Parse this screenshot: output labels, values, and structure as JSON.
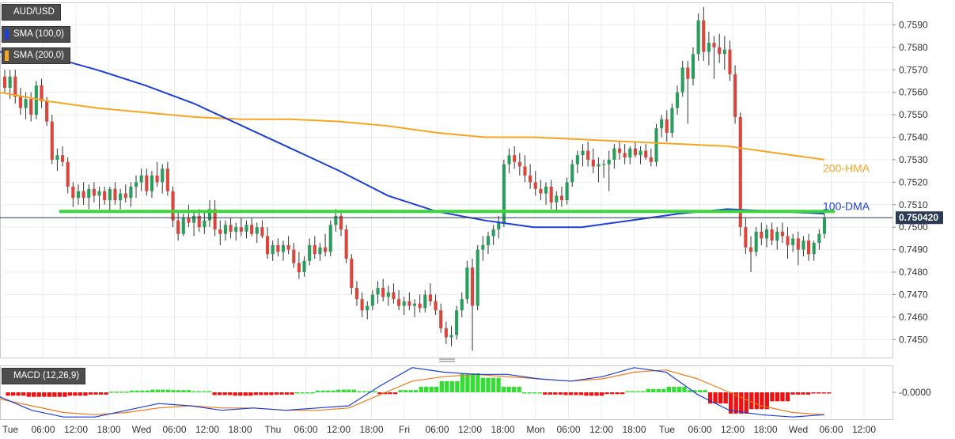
{
  "badges": {
    "symbol": "AUD/USD",
    "sma100": "SMA (100,0)",
    "sma200": "SMA (200,0)",
    "macd": "MACD (12,26,9)"
  },
  "colors": {
    "up": "#2a9d5c",
    "down": "#d9463b",
    "sma100": "#1c3fd6",
    "sma200": "#f5a623",
    "support": "#3ad63a",
    "macd_line": "#1c3fd6",
    "signal_line": "#f07a1a",
    "hist_pos": "#33dd33",
    "hist_neg": "#ee1111"
  },
  "chart_data": [
    {
      "type": "candlestick",
      "name": "price",
      "ylim": [
        0.7442,
        0.76
      ],
      "y_ticks": [
        "0.7450",
        "0.7460",
        "0.7470",
        "0.7480",
        "0.7490",
        "0.7500",
        "0.7510",
        "0.7520",
        "0.7530",
        "0.7540",
        "0.7550",
        "0.7560",
        "0.7570",
        "0.7580",
        "0.7590"
      ],
      "last_price": "0.750420",
      "support_level": 0.7507,
      "annotations": [
        {
          "text": "200-HMA",
          "series": "sma200"
        },
        {
          "text": "100-DMA",
          "series": "sma100"
        }
      ],
      "x_ticks": [
        "Tue",
        "06:00",
        "12:00",
        "18:00",
        "Wed",
        "06:00",
        "12:00",
        "18:00",
        "Thu",
        "06:00",
        "12:00",
        "18:00",
        "Fri",
        "06:00",
        "12:00",
        "18:00",
        "Mon",
        "06:00",
        "12:00",
        "18:00",
        "Tue",
        "06:00",
        "12:00",
        "18:00",
        "Wed",
        "06:00",
        "12:00"
      ],
      "candles": [
        [
          0.7567,
          0.757,
          0.756,
          0.7562
        ],
        [
          0.7562,
          0.757,
          0.7557,
          0.7567
        ],
        [
          0.7567,
          0.757,
          0.7555,
          0.7558
        ],
        [
          0.7558,
          0.7562,
          0.755,
          0.7553
        ],
        [
          0.7553,
          0.756,
          0.7548,
          0.7557
        ],
        [
          0.7557,
          0.756,
          0.7547,
          0.755
        ],
        [
          0.755,
          0.7565,
          0.7548,
          0.7563
        ],
        [
          0.7563,
          0.7566,
          0.7553,
          0.7556
        ],
        [
          0.7556,
          0.7558,
          0.7545,
          0.7547
        ],
        [
          0.7547,
          0.755,
          0.7528,
          0.753
        ],
        [
          0.753,
          0.7535,
          0.7525,
          0.7532
        ],
        [
          0.7532,
          0.7536,
          0.7527,
          0.7529
        ],
        [
          0.7529,
          0.7531,
          0.7515,
          0.7518
        ],
        [
          0.7518,
          0.752,
          0.7509,
          0.7513
        ],
        [
          0.7513,
          0.7519,
          0.751,
          0.7516
        ],
        [
          0.7516,
          0.752,
          0.751,
          0.7513
        ],
        [
          0.7513,
          0.7519,
          0.7508,
          0.7517
        ],
        [
          0.7517,
          0.752,
          0.7511,
          0.7514
        ],
        [
          0.7514,
          0.7518,
          0.7508,
          0.7516
        ],
        [
          0.7516,
          0.7518,
          0.751,
          0.7512
        ],
        [
          0.7512,
          0.7518,
          0.7507,
          0.7517
        ],
        [
          0.7517,
          0.752,
          0.751,
          0.7512
        ],
        [
          0.7512,
          0.7517,
          0.7508,
          0.7515
        ],
        [
          0.7515,
          0.7519,
          0.7511,
          0.7513
        ],
        [
          0.7513,
          0.752,
          0.7509,
          0.7518
        ],
        [
          0.7518,
          0.7523,
          0.7513,
          0.752
        ],
        [
          0.752,
          0.7526,
          0.7516,
          0.7523
        ],
        [
          0.7523,
          0.7526,
          0.7514,
          0.7516
        ],
        [
          0.7516,
          0.7525,
          0.7513,
          0.7523
        ],
        [
          0.7523,
          0.7529,
          0.7518,
          0.752
        ],
        [
          0.752,
          0.7528,
          0.7515,
          0.7526
        ],
        [
          0.7526,
          0.7529,
          0.7514,
          0.7516
        ],
        [
          0.7516,
          0.7518,
          0.75,
          0.7503
        ],
        [
          0.7503,
          0.7507,
          0.7494,
          0.7497
        ],
        [
          0.7497,
          0.7506,
          0.7496,
          0.7504
        ],
        [
          0.7504,
          0.751,
          0.75,
          0.7502
        ],
        [
          0.7502,
          0.7507,
          0.7496,
          0.7505
        ],
        [
          0.7505,
          0.7508,
          0.7498,
          0.75
        ],
        [
          0.75,
          0.7507,
          0.7497,
          0.7503
        ],
        [
          0.7503,
          0.7512,
          0.75,
          0.7508
        ],
        [
          0.7508,
          0.7512,
          0.7496,
          0.7499
        ],
        [
          0.7499,
          0.7503,
          0.7492,
          0.7497
        ],
        [
          0.7497,
          0.7503,
          0.7494,
          0.7501
        ],
        [
          0.7501,
          0.7504,
          0.7495,
          0.7498
        ],
        [
          0.7498,
          0.7502,
          0.7494,
          0.75
        ],
        [
          0.75,
          0.7504,
          0.7496,
          0.7498
        ],
        [
          0.7498,
          0.7503,
          0.7495,
          0.7501
        ],
        [
          0.7501,
          0.7504,
          0.7496,
          0.7497
        ],
        [
          0.7497,
          0.7502,
          0.7493,
          0.75
        ],
        [
          0.75,
          0.7503,
          0.7495,
          0.7496
        ],
        [
          0.7496,
          0.75,
          0.7486,
          0.7488
        ],
        [
          0.7488,
          0.7494,
          0.7485,
          0.7492
        ],
        [
          0.7492,
          0.7495,
          0.7487,
          0.7489
        ],
        [
          0.7489,
          0.7494,
          0.7485,
          0.7492
        ],
        [
          0.7492,
          0.7496,
          0.7488,
          0.749
        ],
        [
          0.749,
          0.7493,
          0.7482,
          0.7484
        ],
        [
          0.7484,
          0.7489,
          0.7477,
          0.748
        ],
        [
          0.748,
          0.7487,
          0.7478,
          0.7485
        ],
        [
          0.7485,
          0.7495,
          0.7483,
          0.7492
        ],
        [
          0.7492,
          0.7496,
          0.7486,
          0.7488
        ],
        [
          0.7488,
          0.7493,
          0.7485,
          0.7491
        ],
        [
          0.7491,
          0.7497,
          0.7487,
          0.7489
        ],
        [
          0.7489,
          0.7503,
          0.7487,
          0.7501
        ],
        [
          0.7501,
          0.7508,
          0.7498,
          0.7505
        ],
        [
          0.7505,
          0.7507,
          0.7496,
          0.7499
        ],
        [
          0.7499,
          0.7501,
          0.7484,
          0.7486
        ],
        [
          0.7486,
          0.7488,
          0.747,
          0.7473
        ],
        [
          0.7473,
          0.7476,
          0.7465,
          0.7468
        ],
        [
          0.7468,
          0.7471,
          0.746,
          0.7463
        ],
        [
          0.7463,
          0.7467,
          0.7459,
          0.7465
        ],
        [
          0.7465,
          0.7472,
          0.7463,
          0.747
        ],
        [
          0.747,
          0.7476,
          0.7466,
          0.7473
        ],
        [
          0.7473,
          0.7477,
          0.7467,
          0.7469
        ],
        [
          0.7469,
          0.7474,
          0.7465,
          0.7471
        ],
        [
          0.7471,
          0.7475,
          0.7466,
          0.7468
        ],
        [
          0.7468,
          0.7472,
          0.7463,
          0.7465
        ],
        [
          0.7465,
          0.7469,
          0.7461,
          0.7467
        ],
        [
          0.7467,
          0.7471,
          0.7463,
          0.7465
        ],
        [
          0.7465,
          0.7468,
          0.746,
          0.7466
        ],
        [
          0.7466,
          0.747,
          0.7462,
          0.7464
        ],
        [
          0.7464,
          0.7472,
          0.7462,
          0.747
        ],
        [
          0.747,
          0.7475,
          0.7465,
          0.7467
        ],
        [
          0.7467,
          0.747,
          0.7461,
          0.7463
        ],
        [
          0.7463,
          0.7466,
          0.7453,
          0.7455
        ],
        [
          0.7455,
          0.7458,
          0.7448,
          0.7451
        ],
        [
          0.7451,
          0.7456,
          0.7447,
          0.7452
        ],
        [
          0.7452,
          0.7465,
          0.745,
          0.7463
        ],
        [
          0.7463,
          0.7471,
          0.746,
          0.7468
        ],
        [
          0.7468,
          0.7485,
          0.7466,
          0.7482
        ],
        [
          0.7482,
          0.7486,
          0.7445,
          0.7465
        ],
        [
          0.7465,
          0.7492,
          0.7463,
          0.749
        ],
        [
          0.749,
          0.7496,
          0.7485,
          0.7492
        ],
        [
          0.7492,
          0.7498,
          0.7488,
          0.7496
        ],
        [
          0.7496,
          0.7501,
          0.7492,
          0.7499
        ],
        [
          0.7499,
          0.7505,
          0.7495,
          0.7502
        ],
        [
          0.7502,
          0.753,
          0.75,
          0.7528
        ],
        [
          0.7528,
          0.7535,
          0.7524,
          0.7532
        ],
        [
          0.7532,
          0.7536,
          0.7526,
          0.7529
        ],
        [
          0.7529,
          0.7533,
          0.7523,
          0.7527
        ],
        [
          0.7527,
          0.7532,
          0.752,
          0.7523
        ],
        [
          0.7523,
          0.7528,
          0.7517,
          0.752
        ],
        [
          0.752,
          0.7525,
          0.7514,
          0.7517
        ],
        [
          0.7517,
          0.7521,
          0.7512,
          0.7515
        ],
        [
          0.7515,
          0.752,
          0.751,
          0.7518
        ],
        [
          0.7518,
          0.7521,
          0.7508,
          0.7511
        ],
        [
          0.7511,
          0.7516,
          0.7507,
          0.7514
        ],
        [
          0.7514,
          0.7518,
          0.7509,
          0.7512
        ],
        [
          0.7512,
          0.7522,
          0.751,
          0.752
        ],
        [
          0.752,
          0.753,
          0.7518,
          0.7528
        ],
        [
          0.7528,
          0.7534,
          0.7524,
          0.7532
        ],
        [
          0.7532,
          0.7537,
          0.7527,
          0.7534
        ],
        [
          0.7534,
          0.7538,
          0.7527,
          0.753
        ],
        [
          0.753,
          0.7535,
          0.7524,
          0.7527
        ],
        [
          0.7527,
          0.7531,
          0.752,
          0.7528
        ],
        [
          0.7528,
          0.753,
          0.7522,
          0.7528
        ],
        [
          0.7528,
          0.7534,
          0.7516,
          0.753
        ],
        [
          0.753,
          0.7537,
          0.7526,
          0.7535
        ],
        [
          0.7535,
          0.7538,
          0.753,
          0.7533
        ],
        [
          0.7533,
          0.7537,
          0.7528,
          0.7531
        ],
        [
          0.7531,
          0.7536,
          0.7528,
          0.7535
        ],
        [
          0.7535,
          0.7538,
          0.7531,
          0.7532
        ],
        [
          0.7532,
          0.7536,
          0.7528,
          0.7534
        ],
        [
          0.7534,
          0.7537,
          0.753,
          0.7531
        ],
        [
          0.7531,
          0.7535,
          0.7527,
          0.7529
        ],
        [
          0.7529,
          0.7546,
          0.7527,
          0.7544
        ],
        [
          0.7544,
          0.755,
          0.754,
          0.7548
        ],
        [
          0.7548,
          0.7552,
          0.7538,
          0.7542
        ],
        [
          0.7542,
          0.7555,
          0.754,
          0.7553
        ],
        [
          0.7553,
          0.7563,
          0.755,
          0.756
        ],
        [
          0.756,
          0.7574,
          0.7558,
          0.7571
        ],
        [
          0.7571,
          0.7574,
          0.7546,
          0.7566
        ],
        [
          0.7566,
          0.758,
          0.7563,
          0.7577
        ],
        [
          0.7577,
          0.7595,
          0.7574,
          0.7592
        ],
        [
          0.7592,
          0.7598,
          0.7574,
          0.7578
        ],
        [
          0.7578,
          0.7587,
          0.7572,
          0.7582
        ],
        [
          0.7582,
          0.7585,
          0.7566,
          0.758
        ],
        [
          0.758,
          0.7586,
          0.7573,
          0.7577
        ],
        [
          0.7577,
          0.7585,
          0.757,
          0.7579
        ],
        [
          0.7579,
          0.7583,
          0.7565,
          0.7568
        ],
        [
          0.7568,
          0.7572,
          0.7546,
          0.7549
        ],
        [
          0.7549,
          0.7551,
          0.7496,
          0.75
        ],
        [
          0.75,
          0.7504,
          0.7488,
          0.7491
        ],
        [
          0.7491,
          0.7496,
          0.748,
          0.7489
        ],
        [
          0.7489,
          0.75,
          0.7487,
          0.7498
        ],
        [
          0.7498,
          0.7502,
          0.7492,
          0.7495
        ],
        [
          0.7495,
          0.7501,
          0.7491,
          0.7499
        ],
        [
          0.7499,
          0.7502,
          0.7492,
          0.7494
        ],
        [
          0.7494,
          0.75,
          0.749,
          0.7498
        ],
        [
          0.7498,
          0.7502,
          0.7493,
          0.7496
        ],
        [
          0.7496,
          0.75,
          0.7486,
          0.7492
        ],
        [
          0.7492,
          0.7497,
          0.7489,
          0.7495
        ],
        [
          0.7495,
          0.7498,
          0.7483,
          0.749
        ],
        [
          0.749,
          0.7496,
          0.7487,
          0.7494
        ],
        [
          0.7494,
          0.7497,
          0.7485,
          0.7488
        ],
        [
          0.7488,
          0.7494,
          0.7485,
          0.7493
        ],
        [
          0.7493,
          0.7499,
          0.749,
          0.7497
        ],
        [
          0.7497,
          0.7506,
          0.7495,
          0.7504
        ]
      ],
      "series": [
        {
          "key": "sma100",
          "y": [
            0.7578,
            0.7576,
            0.757,
            0.7563,
            0.7555,
            0.7545,
            0.7535,
            0.7525,
            0.7514,
            0.7507,
            0.7503,
            0.75,
            0.75,
            0.7503,
            0.7506,
            0.7508,
            0.7507,
            0.7506
          ]
        },
        {
          "key": "sma200",
          "y": [
            0.756,
            0.7556,
            0.7553,
            0.7551,
            0.7549,
            0.7548,
            0.7548,
            0.7547,
            0.7545,
            0.7542,
            0.754,
            0.754,
            0.7539,
            0.7538,
            0.7537,
            0.7536,
            0.7533,
            0.753
          ]
        }
      ]
    },
    {
      "type": "histogram",
      "name": "MACD",
      "y_ticks": [
        "-0.0000"
      ],
      "ylim": [
        -0.0012,
        0.0012
      ],
      "histogram": [
        -0.00015,
        -0.0002,
        -0.0002,
        -0.00015,
        -0.0001,
        3e-05,
        8e-05,
        0.00012,
        0.0001,
        5e-05,
        -0.00012,
        -0.00015,
        -0.00012,
        -0.0001,
        0,
        8e-05,
        0.00012,
        5e-05,
        -8e-05,
        0.0001,
        0.00025,
        0.0005,
        0.00085,
        0.00065,
        0.00025,
        0,
        -0.0001,
        -0.00012,
        -0.00015,
        -8e-05,
        5e-05,
        0.00015,
        0.00025,
        0.0001,
        -0.0005,
        -0.00095,
        -0.00075,
        -0.0004,
        -0.0001,
        -2e-05
      ],
      "series": [
        {
          "key": "macd_line",
          "y": [
            -0.0002,
            -0.0008,
            -0.0011,
            -0.0011,
            -0.0008,
            -0.0005,
            -0.0006,
            -0.0008,
            -0.0007,
            -0.0008,
            -0.0007,
            -0.0006,
            0.0003,
            0.0011,
            0.0009,
            0.0008,
            0.0008,
            0.0006,
            0.0005,
            0.0007,
            0.0011,
            0.0009,
            -0.0001,
            -0.0008,
            -0.001,
            -0.0011,
            -0.001
          ]
        },
        {
          "key": "signal_line",
          "y": [
            -0.0003,
            -0.0006,
            -0.0009,
            -0.001,
            -0.0009,
            -0.0007,
            -0.0006,
            -0.0007,
            -0.0007,
            -0.0008,
            -0.0008,
            -0.0007,
            -0.0001,
            0.0005,
            0.0007,
            0.0008,
            0.0007,
            0.0006,
            0.0005,
            0.0006,
            0.0009,
            0.001,
            0.0006,
            0,
            -0.0006,
            -0.0009,
            -0.001
          ]
        }
      ]
    }
  ]
}
